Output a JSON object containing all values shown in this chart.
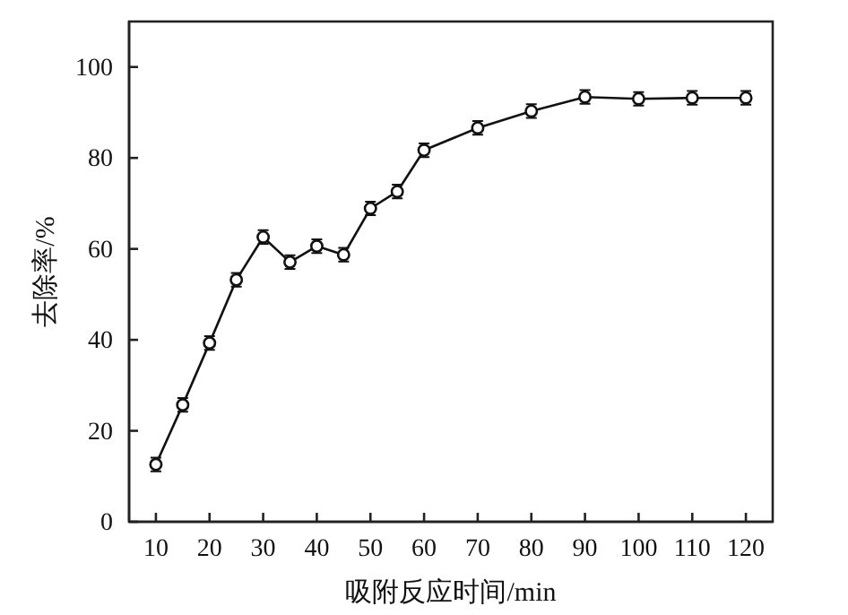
{
  "chart_data": {
    "type": "line",
    "xlabel": "吸附反应时间/min",
    "ylabel": "去除率/%",
    "x": [
      10,
      15,
      20,
      25,
      30,
      35,
      40,
      45,
      50,
      55,
      60,
      70,
      80,
      90,
      100,
      110,
      120
    ],
    "series": [
      {
        "color": "#111111",
        "values": [
          12.6,
          25.7,
          39.3,
          53.2,
          62.6,
          57.1,
          60.6,
          58.7,
          68.9,
          72.6,
          81.7,
          86.6,
          90.3,
          93.4,
          93.0,
          93.2,
          93.2
        ],
        "errors": [
          1.5,
          1.5,
          1.5,
          1.5,
          1.5,
          1.5,
          1.5,
          1.5,
          1.5,
          1.5,
          1.5,
          1.5,
          1.5,
          1.5,
          1.5,
          1.5,
          1.5
        ]
      }
    ],
    "xlim": [
      5,
      125
    ],
    "xticks": [
      10,
      20,
      30,
      40,
      50,
      60,
      70,
      80,
      90,
      100,
      110,
      120
    ],
    "ylim": [
      0,
      110
    ],
    "yticks": [
      0,
      20,
      40,
      60,
      80,
      100
    ],
    "marker": "circle",
    "line_style": "solid"
  }
}
